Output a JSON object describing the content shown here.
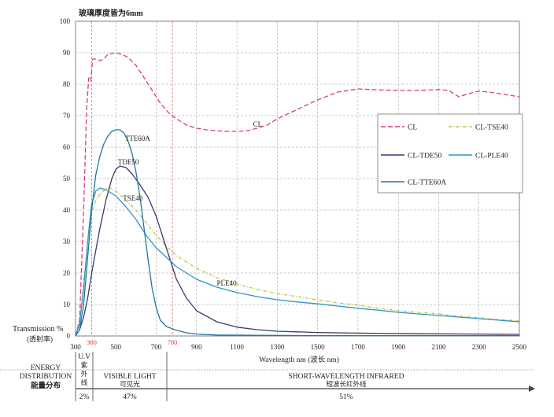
{
  "chart_data": {
    "type": "line",
    "title": "玻璃厚度皆为6mm",
    "xlabel": "Wavelength nm (波长 nm)",
    "ylabel": "Transmission %",
    "ylabel_sub": "(透射率)",
    "xlim": [
      300,
      2500
    ],
    "ylim": [
      0,
      100
    ],
    "xticks": [
      300,
      500,
      700,
      900,
      1100,
      1300,
      1500,
      1700,
      1900,
      2100,
      2300,
      2500
    ],
    "yticks": [
      0,
      10,
      20,
      30,
      40,
      50,
      60,
      70,
      80,
      90,
      100
    ],
    "marker_ticks": [
      380,
      780
    ],
    "grid": true,
    "legend_position": "right",
    "series": [
      {
        "name": "CL",
        "color": "#d63a8a",
        "dash": "6,3",
        "label": "CL",
        "points": [
          [
            300,
            0
          ],
          [
            320,
            5
          ],
          [
            340,
            40
          ],
          [
            355,
            72
          ],
          [
            365,
            82
          ],
          [
            375,
            81
          ],
          [
            385,
            88
          ],
          [
            400,
            88
          ],
          [
            420,
            87.5
          ],
          [
            440,
            88
          ],
          [
            460,
            89.5
          ],
          [
            500,
            90
          ],
          [
            530,
            89.5
          ],
          [
            560,
            88.5
          ],
          [
            600,
            86
          ],
          [
            640,
            82
          ],
          [
            680,
            78
          ],
          [
            720,
            74
          ],
          [
            760,
            71
          ],
          [
            800,
            69
          ],
          [
            850,
            67
          ],
          [
            900,
            66
          ],
          [
            950,
            65.5
          ],
          [
            1000,
            65.2
          ],
          [
            1050,
            65
          ],
          [
            1100,
            65
          ],
          [
            1150,
            65.2
          ],
          [
            1200,
            66
          ],
          [
            1250,
            67
          ],
          [
            1300,
            69
          ],
          [
            1400,
            72
          ],
          [
            1500,
            75
          ],
          [
            1600,
            77.5
          ],
          [
            1700,
            78.5
          ],
          [
            1800,
            78.2
          ],
          [
            1900,
            78
          ],
          [
            2000,
            78
          ],
          [
            2100,
            78.3
          ],
          [
            2150,
            78
          ],
          [
            2200,
            76
          ],
          [
            2250,
            77
          ],
          [
            2300,
            77.8
          ],
          [
            2350,
            77.5
          ],
          [
            2400,
            77
          ],
          [
            2450,
            76.5
          ],
          [
            2500,
            76
          ]
        ]
      },
      {
        "name": "CL-TSE40",
        "color": "#b9c24a",
        "dash": "4,2,1,2",
        "label": "",
        "points": [
          [
            300,
            0
          ],
          [
            320,
            4
          ],
          [
            340,
            17
          ],
          [
            360,
            30
          ],
          [
            380,
            39
          ],
          [
            400,
            43
          ],
          [
            420,
            45
          ],
          [
            450,
            46.8
          ],
          [
            470,
            47
          ],
          [
            500,
            46
          ],
          [
            550,
            43
          ],
          [
            600,
            40
          ],
          [
            650,
            36
          ],
          [
            700,
            32
          ],
          [
            750,
            28.5
          ],
          [
            800,
            25.5
          ],
          [
            900,
            21.5
          ],
          [
            1000,
            18.5
          ],
          [
            1100,
            16.5
          ],
          [
            1200,
            14.8
          ],
          [
            1300,
            13.5
          ],
          [
            1400,
            12.5
          ],
          [
            1500,
            11.5
          ],
          [
            1600,
            10.5
          ],
          [
            1700,
            9.8
          ],
          [
            1800,
            8.8
          ],
          [
            1900,
            8
          ],
          [
            2000,
            7.5
          ],
          [
            2100,
            7
          ],
          [
            2200,
            6.3
          ],
          [
            2300,
            5.8
          ],
          [
            2400,
            5.2
          ],
          [
            2500,
            4.8
          ]
        ]
      },
      {
        "name": "CL-TDE50",
        "color": "#3a3a6e",
        "dash": "",
        "label": "TDE50",
        "points": [
          [
            300,
            0
          ],
          [
            320,
            2
          ],
          [
            340,
            6
          ],
          [
            360,
            12
          ],
          [
            380,
            20
          ],
          [
            400,
            27
          ],
          [
            420,
            34
          ],
          [
            450,
            43
          ],
          [
            480,
            50
          ],
          [
            500,
            53
          ],
          [
            520,
            54
          ],
          [
            550,
            53.5
          ],
          [
            580,
            51.5
          ],
          [
            620,
            48
          ],
          [
            660,
            44
          ],
          [
            700,
            38
          ],
          [
            730,
            32
          ],
          [
            760,
            26
          ],
          [
            800,
            18
          ],
          [
            850,
            12
          ],
          [
            900,
            8
          ],
          [
            1000,
            4.5
          ],
          [
            1100,
            2.8
          ],
          [
            1200,
            2
          ],
          [
            1300,
            1.5
          ],
          [
            1500,
            1.1
          ],
          [
            1700,
            0.9
          ],
          [
            2000,
            0.7
          ],
          [
            2300,
            0.6
          ],
          [
            2500,
            0.5
          ]
        ]
      },
      {
        "name": "CL-PLE40",
        "color": "#2e96c2",
        "dash": "",
        "label": "PLE40",
        "points": [
          [
            300,
            0
          ],
          [
            320,
            4
          ],
          [
            340,
            15
          ],
          [
            360,
            30
          ],
          [
            380,
            42
          ],
          [
            400,
            46
          ],
          [
            420,
            47
          ],
          [
            450,
            46.5
          ],
          [
            500,
            44.5
          ],
          [
            550,
            41
          ],
          [
            600,
            37
          ],
          [
            650,
            32
          ],
          [
            700,
            28
          ],
          [
            800,
            22
          ],
          [
            900,
            18
          ],
          [
            1000,
            15.5
          ],
          [
            1100,
            13.8
          ],
          [
            1200,
            12.5
          ],
          [
            1300,
            11.5
          ],
          [
            1400,
            10.8
          ],
          [
            1500,
            10.2
          ],
          [
            1600,
            9.5
          ],
          [
            1700,
            8.8
          ],
          [
            1800,
            8.2
          ],
          [
            1900,
            7.5
          ],
          [
            2000,
            7
          ],
          [
            2100,
            6.5
          ],
          [
            2200,
            6
          ],
          [
            2300,
            5.5
          ],
          [
            2400,
            5
          ],
          [
            2500,
            4.5
          ]
        ]
      },
      {
        "name": "CL-TTE60A",
        "color": "#2277a0",
        "dash": "",
        "label": "TTE60A",
        "points": [
          [
            300,
            0
          ],
          [
            320,
            2
          ],
          [
            340,
            10
          ],
          [
            360,
            25
          ],
          [
            380,
            40
          ],
          [
            400,
            51
          ],
          [
            420,
            57
          ],
          [
            440,
            61
          ],
          [
            460,
            63.5
          ],
          [
            480,
            65
          ],
          [
            500,
            65.5
          ],
          [
            520,
            65.5
          ],
          [
            540,
            64.5
          ],
          [
            560,
            62
          ],
          [
            580,
            58
          ],
          [
            600,
            52
          ],
          [
            620,
            44
          ],
          [
            640,
            34
          ],
          [
            660,
            24
          ],
          [
            680,
            15
          ],
          [
            700,
            9
          ],
          [
            720,
            5
          ],
          [
            750,
            3
          ],
          [
            800,
            1.8
          ],
          [
            850,
            1
          ],
          [
            900,
            0.6
          ],
          [
            1000,
            0.3
          ],
          [
            1200,
            0.2
          ],
          [
            1500,
            0.1
          ],
          [
            2500,
            0.1
          ]
        ]
      }
    ],
    "annotations": [
      {
        "text": "CL",
        "x": 1180,
        "y": 66.5
      },
      {
        "text": "TTE60A",
        "x": 545,
        "y": 62
      },
      {
        "text": "TDE50",
        "x": 510,
        "y": 54.5
      },
      {
        "text": "TSE40",
        "x": 535,
        "y": 43
      },
      {
        "text": "PLE40",
        "x": 1000,
        "y": 16
      }
    ]
  },
  "energy_table": {
    "row_label": [
      "ENERGY",
      "DISTRIBUTION",
      "能量分布"
    ],
    "uv": {
      "label": "U.V",
      "cn": [
        "紫",
        "外",
        "线"
      ],
      "percent": "2%"
    },
    "visible": {
      "label": "VISIBLE LIGHT",
      "cn": "可见光",
      "percent": "47%"
    },
    "infrared": {
      "label": "SHORT-WAVELENGTH INFRARED",
      "cn": "短波长红外线",
      "percent": "51%"
    }
  }
}
